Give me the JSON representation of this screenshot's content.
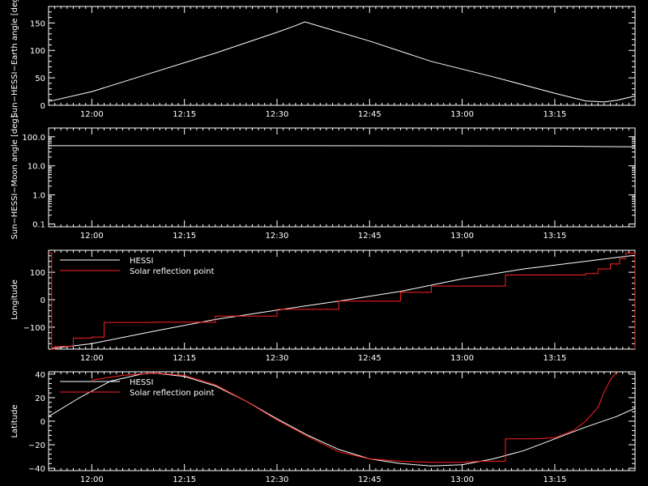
{
  "chart_data": [
    {
      "type": "line",
      "ylabel": "Sun−HESSI−Earth angle [deg]",
      "xlim": [
        11.8833,
        13.4667
      ],
      "ylim": [
        0,
        180
      ],
      "log": false,
      "xticks": [
        12.0,
        12.25,
        12.5,
        12.75,
        13.0,
        13.25
      ],
      "xtick_labels": [
        "12:00",
        "12:15",
        "12:30",
        "12:45",
        "13:00",
        "13:15"
      ],
      "yticks": [
        0,
        50,
        100,
        150
      ],
      "ytick_labels": [
        "0",
        "50",
        "100",
        "150"
      ],
      "series": [
        {
          "color": "#ffffff",
          "step": false,
          "x": [
            11.8833,
            12.0,
            12.1667,
            12.3333,
            12.5,
            12.55,
            12.575,
            12.6,
            12.75,
            12.9167,
            13.0833,
            13.25,
            13.3333,
            13.3833,
            13.4167,
            13.4667
          ],
          "y": [
            7,
            25,
            60,
            95,
            133,
            145,
            152,
            147,
            117,
            80,
            52,
            22,
            8,
            6,
            9,
            17
          ]
        }
      ]
    },
    {
      "type": "line",
      "ylabel": "Sun−HESSI−Moon angle [deg]",
      "xlim": [
        11.8833,
        13.4667
      ],
      "ylim": [
        0.08,
        200
      ],
      "log": true,
      "xticks": [
        12.0,
        12.25,
        12.5,
        12.75,
        13.0,
        13.25
      ],
      "xtick_labels": [
        "12:00",
        "12:15",
        "12:30",
        "12:45",
        "13:00",
        "13:15"
      ],
      "yticks": [
        0.1,
        1,
        10,
        100
      ],
      "ytick_labels": [
        "0.1",
        "1.0",
        "10.0",
        "100.0"
      ],
      "series": [
        {
          "color": "#ffffff",
          "step": false,
          "x": [
            11.8833,
            12.5,
            13.0,
            13.25,
            13.4667
          ],
          "y": [
            49,
            49,
            48.5,
            47.5,
            45
          ]
        }
      ]
    },
    {
      "type": "line",
      "ylabel": "Longitude",
      "xlim": [
        11.8833,
        13.4667
      ],
      "ylim": [
        -180,
        180
      ],
      "log": false,
      "xticks": [
        12.0,
        12.25,
        12.5,
        12.75,
        13.0,
        13.25
      ],
      "xtick_labels": [
        "12:00",
        "12:15",
        "12:30",
        "12:45",
        "13:00",
        "13:15"
      ],
      "yticks": [
        -100,
        0,
        100
      ],
      "ytick_labels": [
        "−100",
        "0",
        "100"
      ],
      "legend": {
        "placement": "top-left",
        "entries": [
          {
            "label": "HESSI",
            "color": "#ffffff"
          },
          {
            "label": "Solar reflection point",
            "color": "#ff2020"
          }
        ]
      },
      "series": [
        {
          "name": "HESSI",
          "color": "#ffffff",
          "step": false,
          "x": [
            11.8917,
            12.0,
            12.1667,
            12.3333,
            12.5,
            12.6667,
            12.8333,
            13.0,
            13.1667,
            13.3333,
            13.4667
          ],
          "y": [
            -178,
            -160,
            -115,
            -72,
            -38,
            -5,
            30,
            76,
            112,
            140,
            162
          ]
        },
        {
          "name": "Solar reflection point",
          "color": "#ff2020",
          "step": true,
          "x": [
            11.8833,
            11.8917,
            11.9,
            11.95,
            12.0,
            12.0333,
            12.1667,
            12.3333,
            12.5,
            12.6667,
            12.8333,
            12.9167,
            13.0833,
            13.1167,
            13.25,
            13.3333,
            13.3667,
            13.4,
            13.425,
            13.4417,
            13.4533,
            13.4667
          ],
          "y": [
            170,
            -180,
            -170,
            -140,
            -136,
            -83,
            -82,
            -60,
            -35,
            -5,
            27,
            50,
            50,
            90,
            90,
            95,
            112,
            130,
            150,
            170,
            170,
            -180
          ]
        }
      ]
    },
    {
      "type": "line",
      "ylabel": "Latitude",
      "xlim": [
        11.8833,
        13.4667
      ],
      "ylim": [
        -42,
        42
      ],
      "log": false,
      "xticks": [
        12.0,
        12.25,
        12.5,
        12.75,
        13.0,
        13.25
      ],
      "xtick_labels": [
        "12:00",
        "12:15",
        "12:30",
        "12:45",
        "13:00",
        "13:15"
      ],
      "yticks": [
        -40,
        -20,
        0,
        20,
        40
      ],
      "ytick_labels": [
        "−40",
        "−20",
        "0",
        "20",
        "40"
      ],
      "legend": {
        "placement": "top-left",
        "entries": [
          {
            "label": "HESSI",
            "color": "#ffffff"
          },
          {
            "label": "Solar reflection point",
            "color": "#ff2020"
          }
        ]
      },
      "series": [
        {
          "name": "HESSI",
          "color": "#ffffff",
          "step": false,
          "x": [
            11.8833,
            11.9667,
            12.05,
            12.1333,
            12.1667,
            12.25,
            12.3333,
            12.4167,
            12.5,
            12.5833,
            12.6667,
            12.75,
            12.8333,
            12.9167,
            13.0,
            13.0833,
            13.1667,
            13.25,
            13.3333,
            13.4167,
            13.4667
          ],
          "y": [
            4,
            20,
            34,
            40,
            41,
            38,
            30,
            17,
            2,
            -12,
            -24,
            -32,
            -36,
            -38,
            -37,
            -32,
            -25,
            -15,
            -5,
            4,
            11
          ]
        },
        {
          "name": "Solar reflection point",
          "color": "#ff2020",
          "step": false,
          "x": [
            12.0,
            12.0833,
            12.1667,
            12.25,
            12.3333,
            12.4167,
            12.5,
            12.5833,
            12.6667,
            12.75,
            12.8333,
            12.9167,
            13.0,
            13.05,
            13.1167,
            13.1167,
            13.2,
            13.25,
            13.3,
            13.3333,
            13.3667,
            13.3833,
            13.4,
            13.4167
          ],
          "y": [
            35,
            39,
            41,
            39,
            31,
            17,
            1,
            -13,
            -26,
            -32,
            -34,
            -35,
            -35,
            -34,
            -34,
            -15,
            -15,
            -14,
            -8,
            0,
            12,
            25,
            35,
            42
          ]
        }
      ]
    }
  ]
}
